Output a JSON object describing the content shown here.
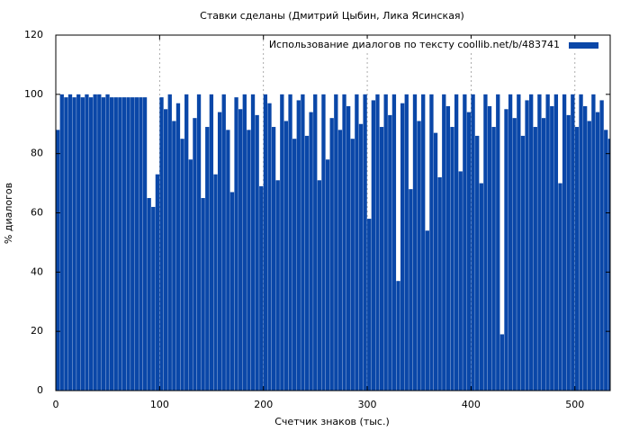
{
  "chart_data": {
    "type": "bar",
    "title": "Ставки сделаны (Дмитрий Цыбин, Лика Ясинская)",
    "xlabel": "Счетчик знаков (тыс.)",
    "ylabel": "% диалогов",
    "grid": true,
    "legend": "upper right",
    "x": [
      0,
      4,
      8,
      12,
      16,
      20,
      24,
      28,
      32,
      36,
      40,
      44,
      48,
      52,
      56,
      60,
      64,
      68,
      72,
      76,
      80,
      84,
      88,
      92,
      96,
      100,
      104,
      108,
      112,
      116,
      120,
      124,
      128,
      132,
      136,
      140,
      144,
      148,
      152,
      156,
      160,
      164,
      168,
      172,
      176,
      180,
      184,
      188,
      192,
      196,
      200,
      204,
      208,
      212,
      216,
      220,
      224,
      228,
      232,
      236,
      240,
      244,
      248,
      252,
      256,
      260,
      264,
      268,
      272,
      276,
      280,
      284,
      288,
      292,
      296,
      300,
      304,
      308,
      312,
      316,
      320,
      324,
      328,
      332,
      336,
      340,
      344,
      348,
      352,
      356,
      360,
      364,
      368,
      372,
      376,
      380,
      384,
      388,
      392,
      396,
      400,
      404,
      408,
      412,
      416,
      420,
      424,
      428,
      432,
      436,
      440,
      444,
      448,
      452,
      456,
      460,
      464,
      468,
      472,
      476,
      480,
      484,
      488,
      492,
      496,
      500,
      504,
      508,
      512,
      516,
      520,
      524,
      528,
      532
    ],
    "series": [
      {
        "name": "Использование диалогов по тексту  coollib.net/b/483741",
        "color": "#0a47a8",
        "values": [
          88,
          100,
          99,
          100,
          99,
          100,
          99,
          100,
          99,
          100,
          100,
          99,
          100,
          99,
          99,
          99,
          99,
          99,
          99,
          99,
          99,
          99,
          65,
          62,
          73,
          99,
          95,
          100,
          91,
          97,
          85,
          100,
          78,
          92,
          100,
          65,
          89,
          100,
          73,
          94,
          100,
          88,
          67,
          99,
          95,
          100,
          88,
          100,
          93,
          69,
          100,
          97,
          89,
          71,
          100,
          91,
          100,
          85,
          98,
          100,
          86,
          94,
          100,
          71,
          100,
          78,
          92,
          100,
          88,
          100,
          96,
          85,
          100,
          90,
          100,
          58,
          98,
          100,
          89,
          100,
          93,
          100,
          37,
          97,
          100,
          68,
          100,
          91,
          100,
          54,
          100,
          87,
          72,
          100,
          96,
          89,
          100,
          74,
          100,
          94,
          100,
          86,
          70,
          100,
          96,
          89,
          100,
          19,
          95,
          100,
          92,
          100,
          86,
          98,
          100,
          89,
          100,
          92,
          100,
          96,
          100,
          70,
          100,
          93,
          100,
          89,
          100,
          96,
          91,
          100,
          94,
          98,
          88,
          85
        ]
      }
    ],
    "xlim": [
      0,
      534
    ],
    "ylim": [
      0,
      120
    ],
    "xticks": [
      0,
      100,
      200,
      300,
      400,
      500
    ],
    "yticks": [
      0,
      20,
      40,
      60,
      80,
      100,
      120
    ]
  }
}
